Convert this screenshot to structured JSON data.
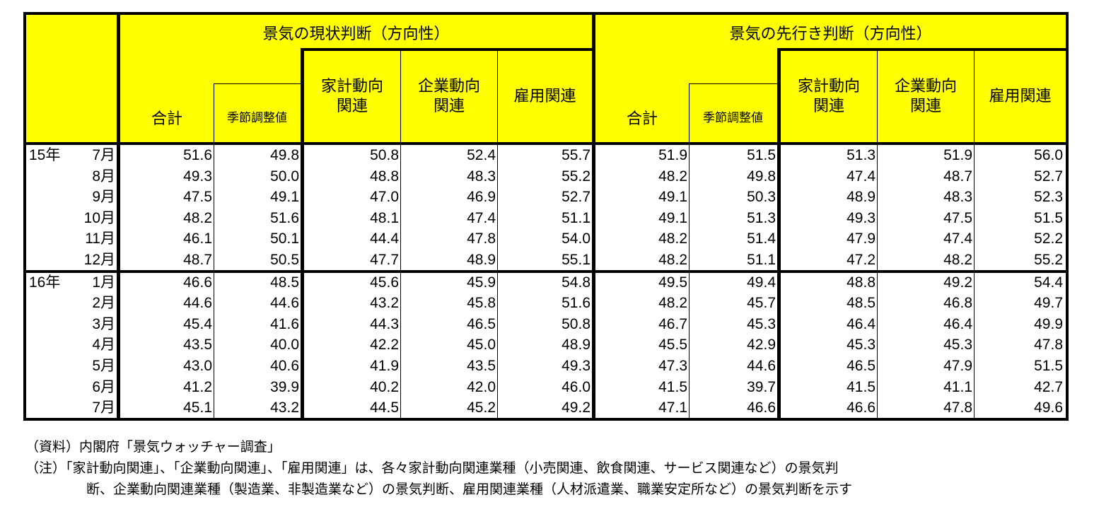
{
  "table": {
    "header": {
      "current_title": "景気の現状判断（方向性）",
      "outlook_title": "景気の先行き判断（方向性）",
      "columns": {
        "total": "合計",
        "seasonal": "季節調整値",
        "household": "家計動向\n関連",
        "corporate": "企業動向\n関連",
        "employment": "雇用関連"
      }
    },
    "rows": [
      {
        "year": "15年",
        "month": "7月",
        "cur": [
          "51.6",
          "49.8",
          "50.8",
          "52.4",
          "55.7"
        ],
        "out": [
          "51.9",
          "51.5",
          "51.3",
          "51.9",
          "56.0"
        ]
      },
      {
        "year": "",
        "month": "8月",
        "cur": [
          "49.3",
          "50.0",
          "48.8",
          "48.3",
          "55.2"
        ],
        "out": [
          "48.2",
          "49.8",
          "47.4",
          "48.7",
          "52.7"
        ]
      },
      {
        "year": "",
        "month": "9月",
        "cur": [
          "47.5",
          "49.1",
          "47.0",
          "46.9",
          "52.7"
        ],
        "out": [
          "49.1",
          "50.3",
          "48.9",
          "48.3",
          "52.3"
        ]
      },
      {
        "year": "",
        "month": "10月",
        "cur": [
          "48.2",
          "51.6",
          "48.1",
          "47.4",
          "51.1"
        ],
        "out": [
          "49.1",
          "51.3",
          "49.3",
          "47.5",
          "51.5"
        ]
      },
      {
        "year": "",
        "month": "11月",
        "cur": [
          "46.1",
          "50.1",
          "44.4",
          "47.8",
          "54.0"
        ],
        "out": [
          "48.2",
          "51.4",
          "47.9",
          "47.4",
          "52.2"
        ]
      },
      {
        "year": "",
        "month": "12月",
        "cur": [
          "48.7",
          "50.5",
          "47.7",
          "48.9",
          "55.1"
        ],
        "out": [
          "48.2",
          "51.1",
          "47.2",
          "48.2",
          "55.2"
        ]
      },
      {
        "year": "16年",
        "month": "1月",
        "cur": [
          "46.6",
          "48.5",
          "45.6",
          "45.9",
          "54.8"
        ],
        "out": [
          "49.5",
          "49.4",
          "48.8",
          "49.2",
          "54.4"
        ]
      },
      {
        "year": "",
        "month": "2月",
        "cur": [
          "44.6",
          "44.6",
          "43.2",
          "45.8",
          "51.6"
        ],
        "out": [
          "48.2",
          "45.7",
          "48.5",
          "46.8",
          "49.7"
        ]
      },
      {
        "year": "",
        "month": "3月",
        "cur": [
          "45.4",
          "41.6",
          "44.3",
          "46.5",
          "50.8"
        ],
        "out": [
          "46.7",
          "45.3",
          "46.4",
          "46.4",
          "49.9"
        ]
      },
      {
        "year": "",
        "month": "4月",
        "cur": [
          "43.5",
          "40.0",
          "42.2",
          "45.0",
          "48.9"
        ],
        "out": [
          "45.5",
          "42.9",
          "45.3",
          "45.3",
          "47.8"
        ]
      },
      {
        "year": "",
        "month": "5月",
        "cur": [
          "43.0",
          "40.6",
          "41.9",
          "43.5",
          "49.3"
        ],
        "out": [
          "47.3",
          "44.6",
          "46.5",
          "47.9",
          "51.5"
        ]
      },
      {
        "year": "",
        "month": "6月",
        "cur": [
          "41.2",
          "39.9",
          "40.2",
          "42.0",
          "46.0"
        ],
        "out": [
          "41.5",
          "39.7",
          "41.5",
          "41.1",
          "42.7"
        ]
      },
      {
        "year": "",
        "month": "7月",
        "cur": [
          "45.1",
          "43.2",
          "44.5",
          "45.2",
          "49.2"
        ],
        "out": [
          "47.1",
          "46.6",
          "46.6",
          "47.8",
          "49.6"
        ]
      }
    ],
    "colors": {
      "header_bg": "#ffff00",
      "border": "#000000",
      "body_bg": "#ffffff"
    }
  },
  "notes": {
    "source": "（資料）内閣府「景気ウォッチャー調査」",
    "note_line1": "（注）「家計動向関連」、「企業動向関連」、「雇用関連」は、各々家計動向関連業種（小売関連、飲食関連、サービス関連など）の景気判",
    "note_line2": "断、企業動向関連業種（製造業、非製造業など）の景気判断、雇用関連業種（人材派遣業、職業安定所など）の景気判断を示す"
  }
}
